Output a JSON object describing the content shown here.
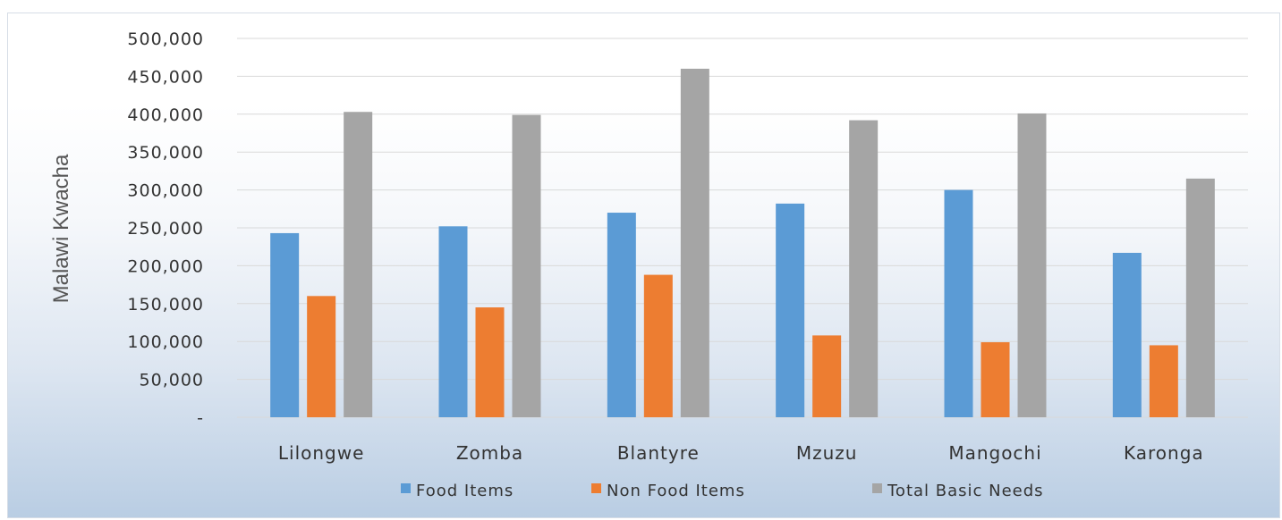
{
  "chart_data": {
    "type": "bar",
    "title": "",
    "xlabel": "",
    "ylabel": "Malawi Kwacha",
    "ylim": [
      0,
      500000
    ],
    "yticks": [
      0,
      50000,
      100000,
      150000,
      200000,
      250000,
      300000,
      350000,
      400000,
      450000,
      500000
    ],
    "ytick_labels": [
      "-",
      "50,000",
      "100,000",
      "150,000",
      "200,000",
      "250,000",
      "300,000",
      "350,000",
      "400,000",
      "450,000",
      "500,000"
    ],
    "categories": [
      "Lilongwe",
      "Zomba",
      "Blantyre",
      "Mzuzu",
      "Mangochi",
      "Karonga"
    ],
    "series": [
      {
        "name": "Food Items",
        "color": "#5b9bd5",
        "values": [
          243000,
          252000,
          270000,
          282000,
          300000,
          217000
        ]
      },
      {
        "name": "Non Food Items",
        "color": "#ed7d31",
        "values": [
          160000,
          145000,
          188000,
          108000,
          99000,
          95000
        ]
      },
      {
        "name": "Total Basic Needs",
        "color": "#a5a5a5",
        "values": [
          403000,
          399000,
          460000,
          392000,
          401000,
          315000
        ]
      }
    ],
    "grid": true,
    "legend_position": "bottom"
  }
}
